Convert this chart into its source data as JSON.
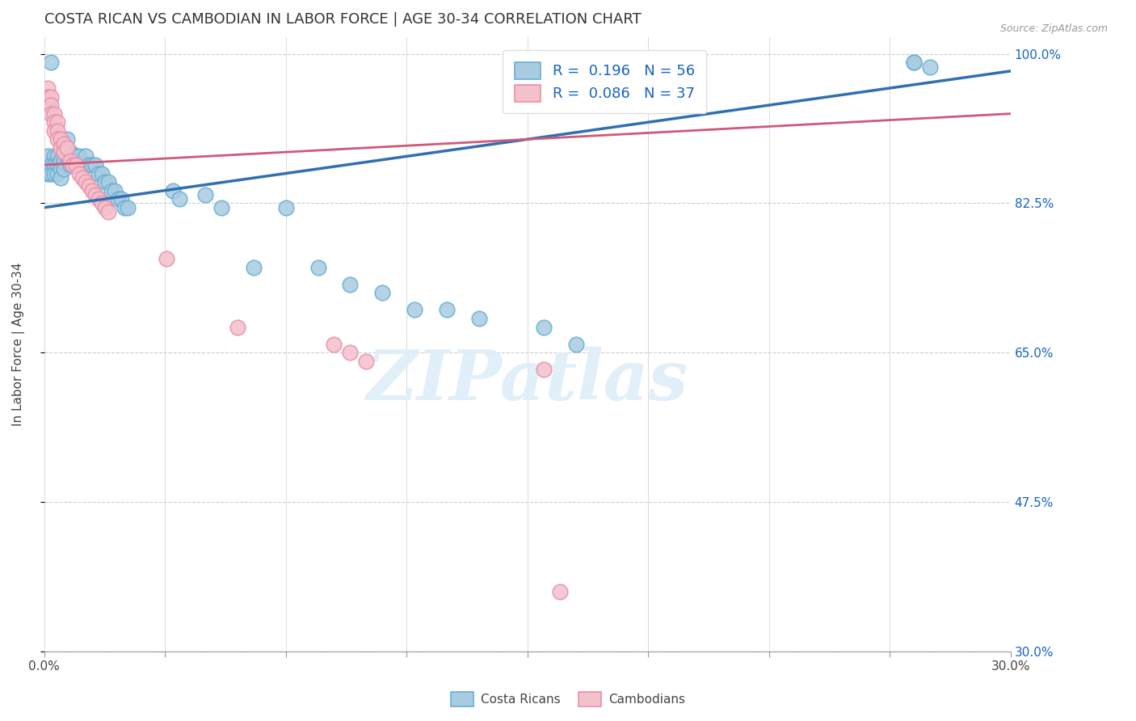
{
  "title": "COSTA RICAN VS CAMBODIAN IN LABOR FORCE | AGE 30-34 CORRELATION CHART",
  "source": "Source: ZipAtlas.com",
  "ylabel": "In Labor Force | Age 30-34",
  "xlim": [
    0.0,
    0.3
  ],
  "ylim": [
    0.3,
    1.02
  ],
  "xticks": [
    0.0,
    0.0375,
    0.075,
    0.1125,
    0.15,
    0.1875,
    0.225,
    0.2625,
    0.3
  ],
  "xticklabels": [
    "0.0%",
    "",
    "",
    "",
    "",
    "",
    "",
    "",
    "30.0%"
  ],
  "ytick_positions": [
    0.3,
    0.475,
    0.65,
    0.825,
    1.0
  ],
  "ytick_labels_right": [
    "30.0%",
    "47.5%",
    "65.0%",
    "82.5%",
    "100.0%"
  ],
  "blue_color": "#a8cce0",
  "blue_edge_color": "#6aaed6",
  "pink_color": "#f4c0cc",
  "pink_edge_color": "#e890a8",
  "blue_line_color": "#3070b0",
  "pink_line_color": "#d05878",
  "legend_label_blue": "R =  0.196   N = 56",
  "legend_label_pink": "R =  0.086   N = 37",
  "watermark": "ZIPatlas",
  "blue_scatter_x": [
    0.001,
    0.001,
    0.002,
    0.002,
    0.002,
    0.003,
    0.003,
    0.003,
    0.004,
    0.004,
    0.004,
    0.005,
    0.005,
    0.005,
    0.006,
    0.006,
    0.007,
    0.007,
    0.008,
    0.008,
    0.009,
    0.01,
    0.01,
    0.011,
    0.012,
    0.013,
    0.014,
    0.015,
    0.016,
    0.017,
    0.018,
    0.019,
    0.02,
    0.021,
    0.022,
    0.023,
    0.024,
    0.025,
    0.026,
    0.04,
    0.042,
    0.05,
    0.055,
    0.065,
    0.075,
    0.085,
    0.095,
    0.105,
    0.115,
    0.125,
    0.135,
    0.155,
    0.165,
    0.27,
    0.27,
    0.275
  ],
  "blue_scatter_y": [
    0.88,
    0.86,
    0.87,
    0.86,
    0.99,
    0.88,
    0.87,
    0.86,
    0.88,
    0.87,
    0.86,
    0.875,
    0.865,
    0.855,
    0.875,
    0.865,
    0.9,
    0.88,
    0.885,
    0.87,
    0.88,
    0.88,
    0.87,
    0.88,
    0.87,
    0.88,
    0.87,
    0.87,
    0.87,
    0.86,
    0.86,
    0.85,
    0.85,
    0.84,
    0.84,
    0.83,
    0.83,
    0.82,
    0.82,
    0.84,
    0.83,
    0.835,
    0.82,
    0.75,
    0.82,
    0.75,
    0.73,
    0.72,
    0.7,
    0.7,
    0.69,
    0.68,
    0.66,
    0.99,
    0.99,
    0.985
  ],
  "pink_scatter_x": [
    0.001,
    0.001,
    0.001,
    0.002,
    0.002,
    0.002,
    0.003,
    0.003,
    0.003,
    0.004,
    0.004,
    0.004,
    0.005,
    0.005,
    0.006,
    0.006,
    0.007,
    0.008,
    0.009,
    0.01,
    0.011,
    0.012,
    0.013,
    0.014,
    0.015,
    0.016,
    0.017,
    0.018,
    0.019,
    0.02,
    0.038,
    0.06,
    0.09,
    0.095,
    0.1,
    0.155,
    0.16
  ],
  "pink_scatter_y": [
    0.96,
    0.95,
    0.94,
    0.95,
    0.94,
    0.93,
    0.93,
    0.92,
    0.91,
    0.92,
    0.91,
    0.9,
    0.9,
    0.89,
    0.895,
    0.885,
    0.89,
    0.875,
    0.87,
    0.87,
    0.86,
    0.855,
    0.85,
    0.845,
    0.84,
    0.835,
    0.83,
    0.825,
    0.82,
    0.815,
    0.76,
    0.68,
    0.66,
    0.65,
    0.64,
    0.63,
    0.37
  ],
  "blue_line_x0": 0.0,
  "blue_line_y0": 0.82,
  "blue_line_x1": 0.3,
  "blue_line_y1": 0.98,
  "pink_line_x0": 0.0,
  "pink_line_y0": 0.87,
  "pink_line_x1": 0.3,
  "pink_line_y1": 0.93,
  "title_fontsize": 13,
  "axis_label_fontsize": 11,
  "tick_fontsize": 11,
  "legend_fontsize": 13
}
